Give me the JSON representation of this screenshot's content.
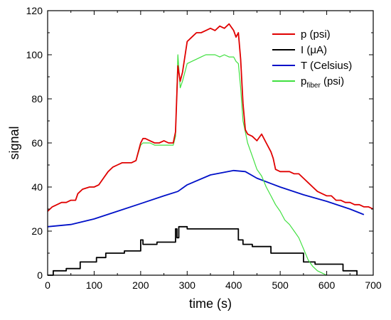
{
  "chart_data": {
    "type": "line",
    "title": "",
    "xlabel": "time (s)",
    "ylabel": "signal",
    "xlim": [
      0,
      700
    ],
    "ylim": [
      0,
      120
    ],
    "x_ticks": [
      0,
      100,
      200,
      300,
      400,
      500,
      600,
      700
    ],
    "x_tick_labels": [
      "0",
      "100",
      "200",
      "300",
      "400",
      "500",
      "600",
      "700"
    ],
    "y_ticks": [
      0,
      20,
      40,
      60,
      80,
      100,
      120
    ],
    "y_tick_labels": [
      "0",
      "20",
      "40",
      "60",
      "80",
      "100",
      "120"
    ],
    "grid": false,
    "legend_position": "top-right",
    "series": [
      {
        "name": "p (psi)",
        "color": "#e00000",
        "x": [
          0,
          10,
          20,
          30,
          40,
          50,
          60,
          65,
          75,
          90,
          100,
          110,
          120,
          130,
          140,
          150,
          160,
          170,
          180,
          190,
          200,
          205,
          210,
          220,
          230,
          240,
          250,
          260,
          270,
          275,
          280,
          285,
          290,
          300,
          310,
          320,
          330,
          340,
          350,
          360,
          370,
          380,
          390,
          400,
          405,
          410,
          415,
          420,
          425,
          430,
          440,
          450,
          460,
          470,
          480,
          485,
          490,
          500,
          510,
          520,
          530,
          540,
          550,
          560,
          570,
          580,
          590,
          600,
          610,
          620,
          630,
          640,
          650,
          660,
          670,
          680,
          690,
          700
        ],
        "values": [
          29,
          31,
          32,
          33,
          33,
          34,
          34,
          37,
          39,
          40,
          40,
          41,
          44,
          47,
          49,
          50,
          51,
          51,
          51,
          52,
          60,
          62,
          62,
          61,
          60,
          60,
          61,
          60,
          60,
          65,
          95,
          88,
          92,
          106,
          108,
          110,
          110,
          111,
          112,
          111,
          113,
          112,
          114,
          111,
          108,
          110,
          98,
          78,
          66,
          64,
          63,
          61,
          64,
          60,
          56,
          53,
          48,
          47,
          47,
          47,
          46,
          46,
          44,
          42,
          40,
          38,
          37,
          36,
          36,
          34,
          34,
          33,
          33,
          32,
          32,
          31,
          31,
          30
        ]
      },
      {
        "name": "I (μA)",
        "color": "#000000",
        "x": [
          0,
          12,
          12,
          40,
          40,
          70,
          70,
          105,
          105,
          125,
          125,
          165,
          165,
          200,
          200,
          205,
          205,
          235,
          235,
          275,
          275,
          278,
          278,
          282,
          282,
          300,
          300,
          345,
          345,
          410,
          410,
          420,
          420,
          425,
          425,
          440,
          440,
          480,
          480,
          490,
          490,
          550,
          550,
          575,
          575,
          635,
          635,
          665,
          665
        ],
        "values": [
          0,
          0,
          2,
          2,
          3,
          3,
          6,
          6,
          8,
          8,
          10,
          10,
          11,
          11,
          16,
          16,
          14,
          14,
          15,
          15,
          21,
          21,
          17,
          17,
          22,
          22,
          21,
          21,
          21,
          21,
          16,
          16,
          14,
          14,
          14,
          14,
          13,
          13,
          10,
          10,
          10,
          10,
          6,
          6,
          5,
          5,
          2,
          2,
          0
        ]
      },
      {
        "name": "T (Celsius)",
        "color": "#0010c8",
        "x": [
          0,
          50,
          100,
          150,
          200,
          250,
          280,
          300,
          350,
          400,
          425,
          450,
          500,
          550,
          600,
          650,
          680
        ],
        "values": [
          22,
          23,
          25.5,
          29,
          32.5,
          36,
          38,
          41,
          45.5,
          47.5,
          47,
          44,
          40,
          36.5,
          33.5,
          30,
          27.5
        ]
      },
      {
        "name": "p_fiber (psi)",
        "color": "#40e040",
        "x": [
          0,
          10,
          20,
          30,
          40,
          50,
          60,
          65,
          75,
          90,
          100,
          110,
          120,
          130,
          140,
          150,
          160,
          170,
          180,
          190,
          200,
          205,
          210,
          220,
          230,
          240,
          250,
          260,
          270,
          275,
          280,
          285,
          290,
          300,
          310,
          320,
          330,
          340,
          350,
          360,
          370,
          380,
          390,
          400,
          405,
          410,
          415,
          420,
          425,
          430,
          440,
          450,
          460,
          470,
          480,
          490,
          500,
          510,
          520,
          530,
          540,
          550,
          560,
          570,
          580,
          590,
          600
        ],
        "values": [
          29,
          31,
          32,
          33,
          33,
          34,
          34,
          37,
          39,
          40,
          40,
          41,
          44,
          47,
          49,
          50,
          51,
          51,
          51,
          52,
          59,
          60,
          60,
          60,
          59,
          59,
          59,
          59,
          59,
          63,
          100,
          85,
          88,
          96,
          97,
          98,
          99,
          100,
          100,
          100,
          99,
          100,
          99,
          99,
          97,
          96,
          85,
          70,
          65,
          60,
          54,
          48,
          45,
          40,
          36,
          32,
          29,
          25,
          23,
          20,
          17,
          12,
          7,
          4,
          2,
          1,
          0
        ]
      }
    ]
  }
}
